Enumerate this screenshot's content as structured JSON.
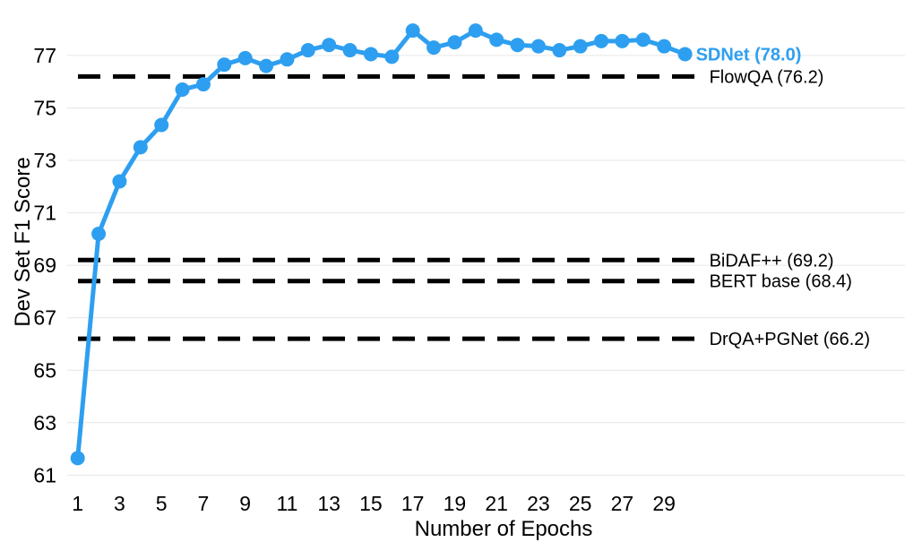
{
  "chart_data": {
    "type": "line",
    "title": "",
    "xlabel": "Number of Epochs",
    "ylabel": "Dev Set F1 Score",
    "xlim": [
      0.5,
      40.5
    ],
    "ylim": [
      60.5,
      78.5
    ],
    "x_ticks": [
      1,
      3,
      5,
      7,
      9,
      11,
      13,
      15,
      17,
      19,
      21,
      23,
      25,
      27,
      29
    ],
    "y_ticks": [
      61,
      63,
      65,
      67,
      69,
      71,
      73,
      75,
      77
    ],
    "grid": "horizontal",
    "series": [
      {
        "name": "SDNet (78.0)",
        "color": "#2e9ff0",
        "x": [
          1,
          2,
          3,
          4,
          5,
          6,
          7,
          8,
          9,
          10,
          11,
          12,
          13,
          14,
          15,
          16,
          17,
          18,
          19,
          20,
          21,
          22,
          23,
          24,
          25,
          26,
          27,
          28,
          29,
          30
        ],
        "y": [
          61.65,
          70.2,
          72.2,
          73.5,
          74.35,
          75.7,
          75.9,
          76.65,
          76.9,
          76.6,
          76.85,
          77.2,
          77.4,
          77.2,
          77.05,
          76.95,
          77.95,
          77.3,
          77.5,
          77.95,
          77.6,
          77.4,
          77.35,
          77.2,
          77.35,
          77.55,
          77.55,
          77.6,
          77.35,
          77.05
        ]
      }
    ],
    "baselines": [
      {
        "label": "FlowQA (76.2)",
        "value": 76.2
      },
      {
        "label": "BiDAF++ (69.2)",
        "value": 69.2
      },
      {
        "label": "BERT base (68.4)",
        "value": 68.4
      },
      {
        "label": "DrQA+PGNet (66.2)",
        "value": 66.2
      }
    ]
  }
}
